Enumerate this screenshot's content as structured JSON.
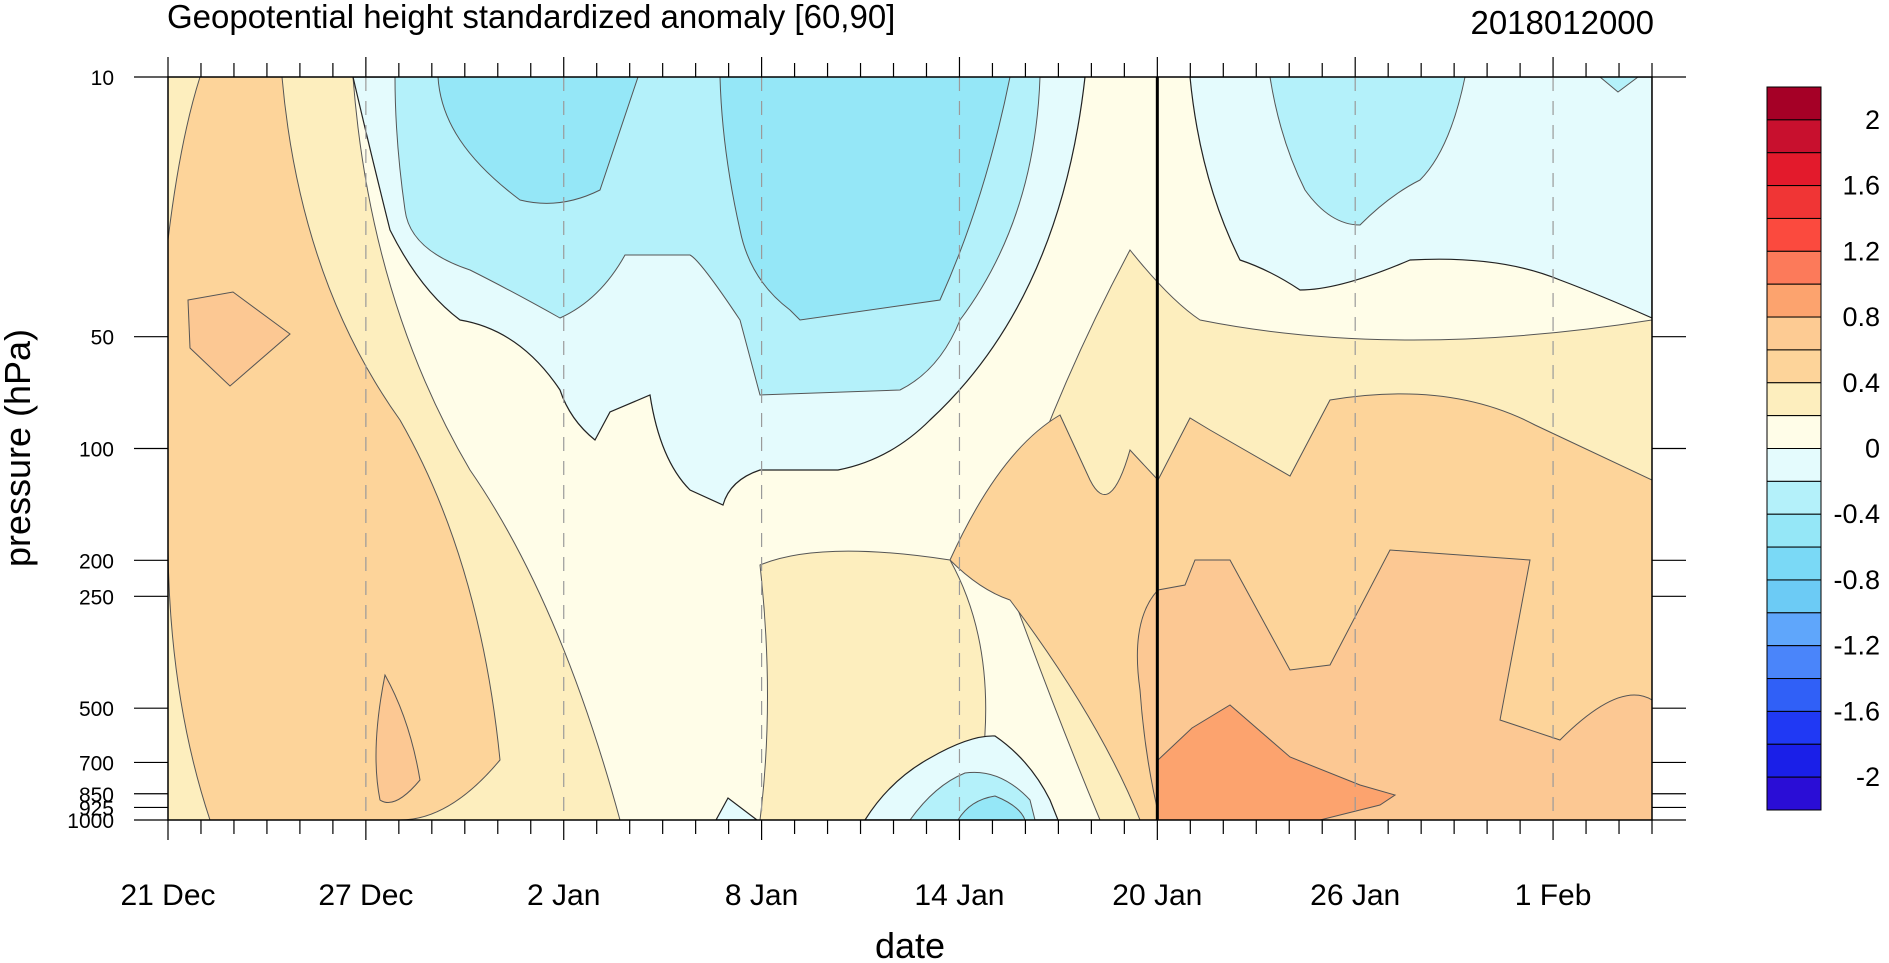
{
  "chart_data": {
    "type": "heatmap",
    "title": "Geopotential height standardized anomaly [60,90]",
    "date_label": "2018012000",
    "xlabel": "date",
    "ylabel": "pressure (hPa)",
    "x_ticks": [
      "21 Dec",
      "27 Dec",
      "2 Jan",
      "8 Jan",
      "14 Jan",
      "20 Jan",
      "26 Jan",
      "1 Feb"
    ],
    "x_tick_days": [
      0,
      6,
      12,
      18,
      24,
      30,
      36,
      42
    ],
    "x_range_days": [
      0,
      45
    ],
    "current_day_marker": 30,
    "y_ticks": [
      10,
      50,
      100,
      200,
      250,
      500,
      700,
      850,
      925,
      1000
    ],
    "y_range": [
      10,
      1000
    ],
    "y_scale": "log-pressure (inverted)",
    "colorbar": {
      "tick_labels": [
        "2",
        "1.6",
        "1.2",
        "0.8",
        "0.4",
        "0",
        "-0.4",
        "-0.8",
        "-1.2",
        "-1.6",
        "-2"
      ],
      "levels_top_to_bottom": [
        "> 2.0",
        "1.8 – 2.0",
        "1.6 – 1.8",
        "1.4 – 1.6",
        "1.2 – 1.4",
        "1.0 – 1.2",
        "0.8 – 1.0",
        "0.6 – 0.8",
        "0.4 – 0.6",
        "0.2 – 0.4",
        "0.0 – 0.2",
        "-0.2 – 0.0",
        "-0.4 – -0.2",
        "-0.6 – -0.4",
        "-0.8 – -0.6",
        "-1.0 – -0.8",
        "-1.2 – -1.0",
        "-1.4 – -1.2",
        "-1.6 – -1.4",
        "-1.8 – -1.6",
        "-2.0 – -1.8",
        "< -2.0"
      ],
      "colors_top_to_bottom": [
        "#a50026",
        "#c8102e",
        "#e31a2c",
        "#f03535",
        "#fb4a3e",
        "#fc7a5a",
        "#fca36e",
        "#fdcb93",
        "#fdd49a",
        "#fdeebe",
        "#fffde8",
        "#e4fbfd",
        "#b4f1fa",
        "#95e7f7",
        "#7ad9f6",
        "#6ccbf5",
        "#5fa6fb",
        "#4a85fa",
        "#3060f7",
        "#2039f4",
        "#1a1fe8",
        "#2a0dd6"
      ]
    },
    "anomaly_samples": [
      {
        "date": "21 Dec",
        "p10": 0.2,
        "p50": 0.6,
        "p100": 0.4,
        "p250": 0.2,
        "p500": 0.1,
        "p1000": 0.0
      },
      {
        "date": "27 Dec",
        "p10": 0.0,
        "p50": 0.4,
        "p100": 0.6,
        "p250": 0.5,
        "p500": 0.6,
        "p1000": 0.6
      },
      {
        "date": "2 Jan",
        "p10": -0.9,
        "p50": -0.4,
        "p100": -0.1,
        "p250": 0.2,
        "p500": 0.3,
        "p1000": 0.1
      },
      {
        "date": "8 Jan",
        "p10": -0.7,
        "p50": -0.6,
        "p100": -0.2,
        "p250": 0.1,
        "p500": 0.0,
        "p1000": 0.0
      },
      {
        "date": "14 Jan",
        "p10": -0.8,
        "p50": -0.5,
        "p100": -0.1,
        "p250": 0.5,
        "p500": 0.1,
        "p1000": -0.6
      },
      {
        "date": "20 Jan",
        "p10": 0.1,
        "p50": 0.3,
        "p100": 0.5,
        "p250": 0.5,
        "p500": 0.6,
        "p1000": 0.9
      },
      {
        "date": "26 Jan",
        "p10": -0.6,
        "p50": 0.3,
        "p100": 0.6,
        "p250": 0.6,
        "p500": 0.7,
        "p1000": 0.6
      },
      {
        "date": "1 Feb",
        "p10": -0.2,
        "p50": 0.3,
        "p100": 0.5,
        "p250": 0.6,
        "p500": 0.7,
        "p1000": 0.6
      }
    ]
  }
}
